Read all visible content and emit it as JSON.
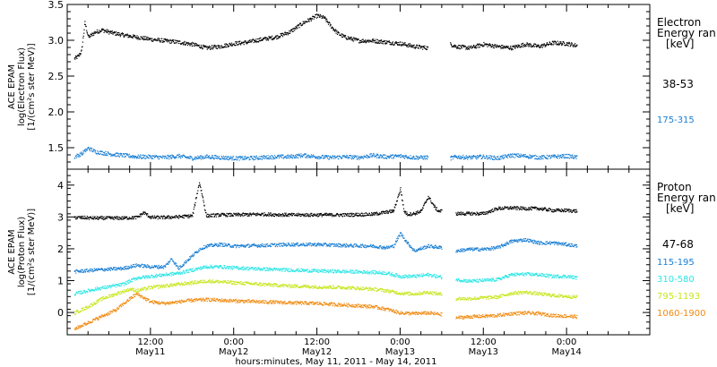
{
  "chart_data": [
    {
      "type": "scatter",
      "panel": "electron",
      "ylabel_lines": [
        "ACE EPAM",
        "log(Electron Flux)",
        "[1/(cm²s ster MeV)]"
      ],
      "ylim": [
        1.2,
        3.5
      ],
      "yticks": [
        "1.5",
        "2.0",
        "2.5",
        "3.0",
        "3.5"
      ],
      "ytick_values": [
        1.5,
        2.0,
        2.5,
        3.0,
        3.5
      ],
      "legend_title_lines": [
        "Electron",
        "Energy ran",
        "[keV]"
      ],
      "series": [
        {
          "name": "38-53",
          "color": "#000000",
          "x": [
            1.0,
            1.5,
            2.0,
            2.5,
            3.0,
            4.0,
            5.0,
            6.0,
            8.0,
            10.0,
            12.0,
            14.0,
            16.0,
            18.0,
            20.0,
            22.0,
            24.0,
            26.0,
            28.0,
            30.0,
            32.0,
            34.0,
            36.0,
            37.0,
            38.0,
            39.0,
            40.0,
            42.0,
            44.0,
            46.0,
            48.0,
            50.0,
            52.0,
            54.0,
            55.2,
            56.0,
            58.0,
            60.0,
            62.0,
            64.0,
            66.0,
            68.0,
            70.0,
            72.0,
            73.5
          ],
          "y": [
            2.75,
            2.78,
            2.85,
            3.25,
            3.05,
            3.12,
            3.15,
            3.12,
            3.08,
            3.05,
            3.02,
            3.0,
            2.98,
            2.95,
            2.9,
            2.92,
            2.96,
            2.98,
            3.02,
            3.05,
            3.12,
            3.25,
            3.35,
            3.32,
            3.2,
            3.1,
            3.05,
            3.0,
            3.0,
            2.98,
            2.96,
            2.92,
            2.9,
            null,
            2.95,
            2.92,
            2.9,
            2.95,
            2.92,
            2.9,
            2.95,
            2.92,
            2.97,
            2.96,
            2.93
          ]
        },
        {
          "name": "175-315",
          "color": "#1a7fd4",
          "x": [
            1.0,
            2.0,
            3.0,
            4.0,
            6.0,
            8.0,
            10.0,
            12.0,
            14.0,
            16.0,
            18.0,
            20.0,
            22.0,
            24.0,
            26.0,
            28.0,
            30.0,
            32.0,
            34.0,
            36.0,
            38.0,
            40.0,
            42.0,
            44.0,
            46.0,
            48.0,
            50.0,
            52.0,
            54.0,
            55.2,
            56.0,
            58.0,
            60.0,
            62.0,
            64.0,
            66.0,
            68.0,
            70.0,
            72.0,
            73.5
          ],
          "y": [
            1.38,
            1.42,
            1.5,
            1.45,
            1.42,
            1.4,
            1.38,
            1.38,
            1.37,
            1.39,
            1.36,
            1.38,
            1.37,
            1.36,
            1.36,
            1.37,
            1.38,
            1.38,
            1.4,
            1.38,
            1.37,
            1.38,
            1.37,
            1.4,
            1.38,
            1.39,
            1.37,
            1.37,
            null,
            1.36,
            1.38,
            1.37,
            1.38,
            1.36,
            1.4,
            1.39,
            1.37,
            1.38,
            1.39,
            1.37
          ]
        }
      ]
    },
    {
      "type": "scatter",
      "panel": "proton",
      "ylabel_lines": [
        "ACE EPAM",
        "log(Proton Flux)",
        "[1/(cm²s ster MeV)]"
      ],
      "ylim": [
        -0.7,
        4.5
      ],
      "yticks": [
        "0",
        "1",
        "2",
        "3",
        "4"
      ],
      "ytick_values": [
        0,
        1,
        2,
        3,
        4
      ],
      "legend_title_lines": [
        "Proton",
        "Energy ran",
        "[keV]"
      ],
      "xticks": [
        "12:00",
        "0:00",
        "12:00",
        "0:00",
        "12:00",
        "0:00"
      ],
      "xtick_dates": [
        "May11",
        "May12",
        "May12",
        "May13",
        "May13",
        "May14"
      ],
      "xtick_values": [
        12,
        24,
        36,
        48,
        60,
        72
      ],
      "xlim": [
        0,
        84
      ],
      "xlabel": "hours:minutes, May 11, 2011 - May 14, 2011",
      "series": [
        {
          "name": "47-68",
          "color": "#000000",
          "x": [
            1.0,
            4.0,
            8.0,
            10.0,
            11.0,
            12.0,
            14.0,
            16.0,
            18.0,
            19.0,
            19.5,
            20.0,
            22.0,
            24.0,
            28.0,
            32.0,
            36.0,
            40.0,
            44.0,
            47.0,
            48.0,
            48.5,
            49.0,
            50.0,
            51.0,
            52.0,
            53.0,
            53.5,
            54.0,
            null,
            56.0,
            58.0,
            60.0,
            62.0,
            64.0,
            66.0,
            68.0,
            70.0,
            72.0,
            73.5
          ],
          "y": [
            3.0,
            2.98,
            2.98,
            3.0,
            3.15,
            3.0,
            3.0,
            3.02,
            3.05,
            4.1,
            3.6,
            3.05,
            3.08,
            3.08,
            3.1,
            3.08,
            3.08,
            3.08,
            3.1,
            3.2,
            3.9,
            3.2,
            3.1,
            3.12,
            3.2,
            3.65,
            3.3,
            3.2,
            3.2,
            null,
            3.12,
            3.12,
            3.12,
            3.28,
            3.3,
            3.28,
            3.28,
            3.22,
            3.22,
            3.2
          ]
        },
        {
          "name": "115-195",
          "color": "#1a7fd4",
          "x": [
            1.0,
            4.0,
            8.0,
            10.0,
            12.0,
            14.0,
            15.0,
            16.0,
            17.0,
            18.0,
            19.0,
            20.0,
            22.0,
            24.0,
            28.0,
            32.0,
            36.0,
            40.0,
            44.0,
            46.0,
            47.0,
            48.0,
            49.0,
            50.0,
            52.0,
            54.0,
            null,
            56.0,
            58.0,
            60.0,
            62.0,
            64.0,
            66.0,
            68.0,
            70.0,
            72.0,
            73.5
          ],
          "y": [
            1.3,
            1.35,
            1.4,
            1.5,
            1.45,
            1.45,
            1.7,
            1.4,
            1.6,
            1.8,
            2.0,
            2.1,
            2.15,
            2.1,
            2.12,
            2.15,
            2.15,
            2.12,
            2.1,
            2.05,
            2.1,
            2.5,
            2.2,
            1.95,
            2.1,
            2.05,
            null,
            1.95,
            2.0,
            2.0,
            2.05,
            2.25,
            2.3,
            2.2,
            2.2,
            2.15,
            2.1
          ]
        },
        {
          "name": "310-580",
          "color": "#2ee6e6",
          "x": [
            1.0,
            4.0,
            8.0,
            10.0,
            12.0,
            14.0,
            16.0,
            18.0,
            20.0,
            22.0,
            24.0,
            28.0,
            32.0,
            36.0,
            40.0,
            44.0,
            46.0,
            48.0,
            50.0,
            52.0,
            54.0,
            null,
            56.0,
            58.0,
            60.0,
            62.0,
            64.0,
            66.0,
            68.0,
            70.0,
            72.0,
            73.5
          ],
          "y": [
            0.6,
            0.75,
            0.9,
            1.1,
            1.15,
            1.2,
            1.25,
            1.35,
            1.45,
            1.45,
            1.42,
            1.38,
            1.35,
            1.32,
            1.3,
            1.28,
            1.25,
            1.15,
            1.15,
            1.2,
            1.12,
            null,
            1.05,
            1.0,
            1.02,
            1.05,
            1.2,
            1.22,
            1.2,
            1.15,
            1.15,
            1.1
          ]
        },
        {
          "name": "795-1193",
          "color": "#c8e61e",
          "x": [
            1.0,
            3.0,
            5.0,
            7.0,
            9.0,
            10.0,
            12.0,
            14.0,
            16.0,
            18.0,
            20.0,
            22.0,
            24.0,
            28.0,
            32.0,
            36.0,
            40.0,
            44.0,
            46.0,
            48.0,
            50.0,
            52.0,
            54.0,
            null,
            56.0,
            58.0,
            60.0,
            62.0,
            64.0,
            66.0,
            68.0,
            70.0,
            72.0,
            73.5
          ],
          "y": [
            0.0,
            0.2,
            0.45,
            0.6,
            0.75,
            0.7,
            0.8,
            0.85,
            0.9,
            0.95,
            1.0,
            0.98,
            0.95,
            0.9,
            0.85,
            0.82,
            0.8,
            0.75,
            0.7,
            0.62,
            0.6,
            0.65,
            0.58,
            null,
            0.45,
            0.45,
            0.48,
            0.5,
            0.62,
            0.65,
            0.6,
            0.55,
            0.52,
            0.5
          ]
        },
        {
          "name": "1060-1900",
          "color": "#f08a10",
          "x": [
            1.0,
            3.0,
            5.0,
            7.0,
            9.0,
            10.0,
            12.0,
            14.0,
            16.0,
            18.0,
            20.0,
            22.0,
            24.0,
            28.0,
            32.0,
            36.0,
            40.0,
            44.0,
            46.0,
            48.0,
            50.0,
            52.0,
            54.0,
            null,
            56.0,
            58.0,
            60.0,
            62.0,
            64.0,
            66.0,
            68.0,
            70.0,
            72.0,
            73.5
          ],
          "y": [
            -0.5,
            -0.3,
            -0.1,
            0.1,
            0.45,
            0.6,
            0.35,
            0.3,
            0.35,
            0.4,
            0.42,
            0.4,
            0.38,
            0.35,
            0.32,
            0.3,
            0.25,
            0.2,
            0.12,
            0.0,
            -0.02,
            0.0,
            -0.05,
            null,
            -0.15,
            -0.12,
            -0.1,
            -0.08,
            -0.02,
            0.0,
            -0.02,
            -0.08,
            -0.1,
            -0.12
          ]
        }
      ]
    }
  ]
}
